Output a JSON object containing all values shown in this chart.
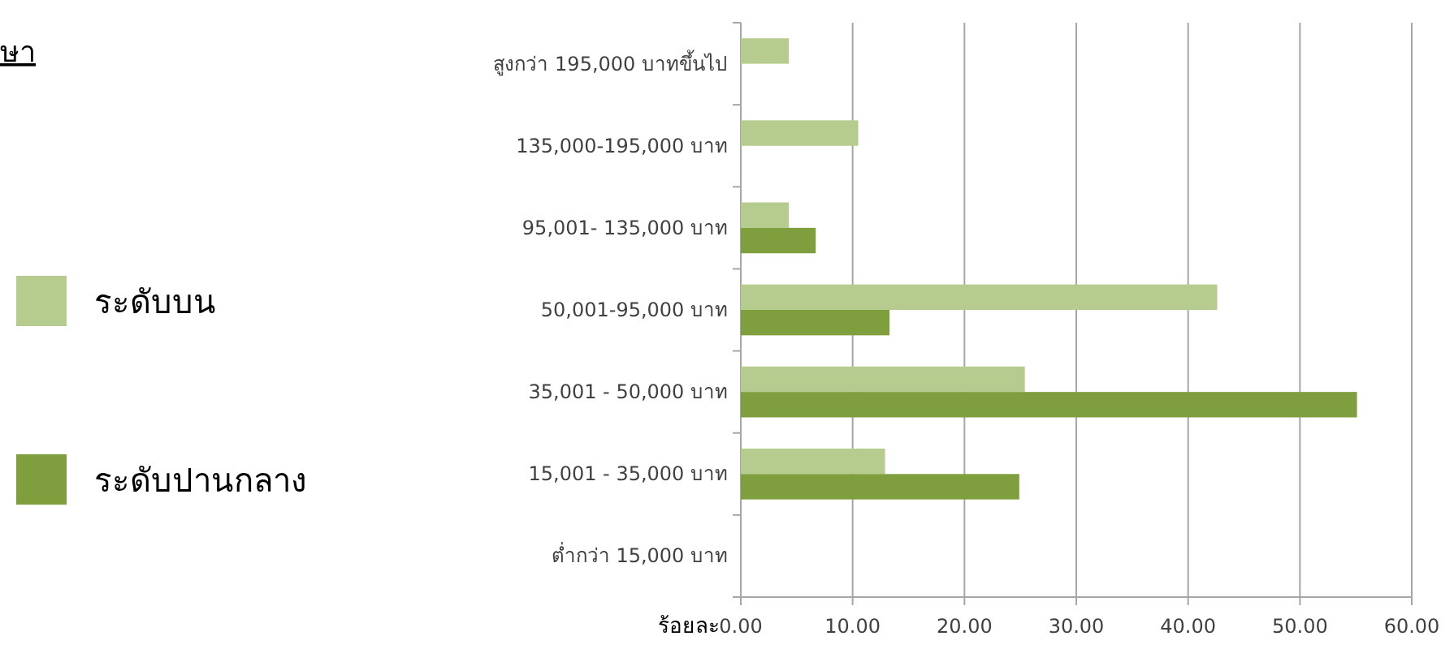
{
  "chart_data": {
    "type": "bar",
    "orientation": "horizontal",
    "categories": [
      "สูงกว่า 195,000 บาทขึ้นไป",
      "135,000-195,000  บาท",
      "95,001-  135,000  บาท",
      "50,001-95,000 บาท",
      "35,001 - 50,000   บาท",
      "15,001 - 35,000 บาท",
      "ต่ำกว่า 15,000   บาท"
    ],
    "series": [
      {
        "name": "ระดับบน",
        "color": "#b5cc8e",
        "values": [
          4.3,
          10.5,
          4.3,
          42.6,
          25.4,
          12.9,
          0
        ]
      },
      {
        "name": "ระดับปานกลาง",
        "color": "#7f9f3f",
        "values": [
          null,
          null,
          6.7,
          13.3,
          55.1,
          24.9,
          0
        ]
      }
    ],
    "xlabel": "ร้อยละ",
    "xlim": [
      0,
      60
    ],
    "xticks": [
      {
        "value": 0,
        "label": "0.00"
      },
      {
        "value": 10,
        "label": "10.00"
      },
      {
        "value": 20,
        "label": "20.00"
      },
      {
        "value": 30,
        "label": "30.00"
      },
      {
        "value": 40,
        "label": "40.00"
      },
      {
        "value": 50,
        "label": "50.00"
      },
      {
        "value": 60,
        "label": "60.00"
      }
    ],
    "grid": "x",
    "legend": "left",
    "annotations": [
      "ษา"
    ]
  }
}
